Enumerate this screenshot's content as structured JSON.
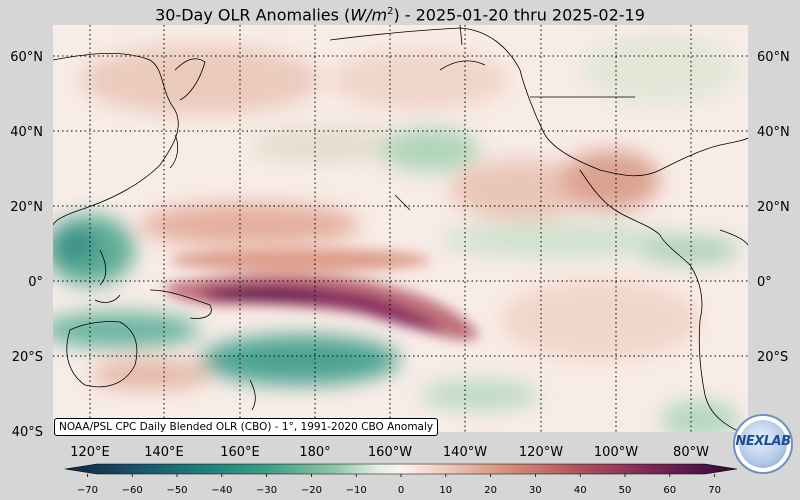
{
  "title": {
    "prefix": "30-Day OLR Anomalies (",
    "unit_base": "W/m",
    "unit_exp": "2",
    "suffix": ") - 2025-01-20 thru 2025-02-19"
  },
  "credit": "NOAA/PSL CPC Daily Blended OLR (CBO) - 1°, 1991-2020 CBO Anomaly",
  "logo_text": "NEXLAB",
  "colors": {
    "background": "#d6d6d6",
    "coast": "#000000",
    "grid": "#000000"
  },
  "map": {
    "lat_labels": [
      "60°N",
      "40°N",
      "20°N",
      "0°",
      "20°S",
      "40°S"
    ],
    "lon_labels": [
      "120°E",
      "140°E",
      "160°E",
      "180°",
      "160°W",
      "140°W",
      "120°W",
      "100°W",
      "80°W"
    ]
  },
  "colorbar": {
    "ticks": [
      "−70",
      "−60",
      "−50",
      "−40",
      "−30",
      "−20",
      "−10",
      "0",
      "10",
      "20",
      "30",
      "40",
      "50",
      "60",
      "70"
    ],
    "min": -75,
    "max": 75
  }
}
